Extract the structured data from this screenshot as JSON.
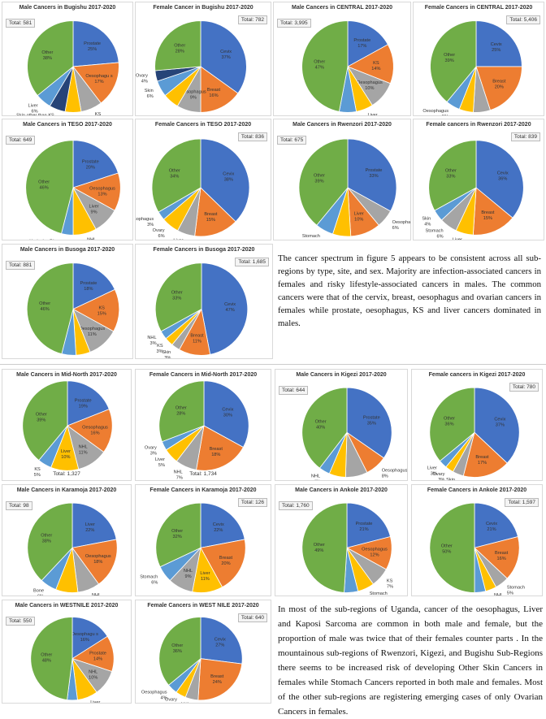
{
  "paragraph1": "The cancer spectrum in figure 5 appears to be consistent across all sub-regions by type, site, and sex. Majority are infection-associated cancers in females and risky lifestyle-associated cancers in males. The common cancers were that of the cervix, breast, oesophagus and ovarian cancers in females while prostate, oesophagus, KS and liver cancers dominated in males.",
  "paragraph2": "In most of the sub-regions of Uganda, cancer of the oesophagus, Liver and Kaposi Sarcoma are common in both male and female, but the proportion of male  was twice that of their females counter parts . In the mountainous sub-regions of Rwenzori, Kigezi, and  Bugishu  Sub-Regions there seems to be increased risk of developing Other Skin Cancers in females while Stomach Cancers reported in both male and females. Most of the other sub-regions are registering emerging cases of only Ovarian Cancers in females.",
  "colors": {
    "Prostate": "#4472c4",
    "Cevix": "#4472c4",
    "Oesophagus": "#ed7d31",
    "Breast": "#ed7d31",
    "KS": "#a5a5a5",
    "Liver": "#ffc000",
    "NHL": "#a5a5a5",
    "Other": "#70ad47",
    "Ovary": "#5b9bd5",
    "Skin": "#5b9bd5",
    "Stomach": "#a5a5a5",
    "Bone": "#5b9bd5",
    "Endemia": "#ffc000",
    "Hodgsins": "#264478",
    "SkinOther": "#5b9bd5"
  },
  "chart_data": [
    {
      "type": "pie",
      "title": "Male Cancers in Bugishu 2017-2020",
      "total": "Total: 581",
      "slices": [
        {
          "label": "Prostate",
          "pct": "25%",
          "value": 25,
          "color": "#4472c4"
        },
        {
          "label": "Oesophagu s",
          "pct": "17%",
          "value": 17,
          "color": "#ed7d31"
        },
        {
          "label": "KS",
          "pct": "8%",
          "value": 8,
          "color": "#a5a5a5"
        },
        {
          "label": "",
          "pct": "",
          "value": 6,
          "color": "#ffc000"
        },
        {
          "label": "Skin other than KS",
          "pct": "6%",
          "value": 6,
          "color": "#264478"
        },
        {
          "label": "Liver",
          "pct": "6%",
          "value": 6,
          "color": "#5b9bd5"
        },
        {
          "label": "Other",
          "pct": "38%",
          "value": 38,
          "color": "#70ad47"
        }
      ]
    },
    {
      "type": "pie",
      "title": "Female Cancer in Bugishu 2017-2020",
      "total": "Total: 782",
      "slices": [
        {
          "label": "Cevix",
          "pct": "37%",
          "value": 37,
          "color": "#4472c4"
        },
        {
          "label": "Breast",
          "pct": "16%",
          "value": 16,
          "color": "#ed7d31"
        },
        {
          "label": "Oesophagus",
          "pct": "9%",
          "value": 9,
          "color": "#a5a5a5"
        },
        {
          "label": "",
          "pct": "",
          "value": 6,
          "color": "#ffc000"
        },
        {
          "label": "Skin",
          "pct": "6%",
          "value": 6,
          "color": "#5b9bd5"
        },
        {
          "label": "Ovary",
          "pct": "4%",
          "value": 4,
          "color": "#264478"
        },
        {
          "label": "Other",
          "pct": "28%",
          "value": 28,
          "color": "#70ad47"
        }
      ]
    },
    {
      "type": "pie",
      "title": "Male Cancers in CENTRAL 2017-2020",
      "total": "Total: 3,995",
      "slices": [
        {
          "label": "Prostate",
          "pct": "17%",
          "value": 17,
          "color": "#4472c4"
        },
        {
          "label": "KS",
          "pct": "14%",
          "value": 14,
          "color": "#ed7d31"
        },
        {
          "label": "Oesophagus",
          "pct": "10%",
          "value": 10,
          "color": "#a5a5a5"
        },
        {
          "label": "Liver",
          "pct": "6%",
          "value": 6,
          "color": "#ffc000"
        },
        {
          "label": "NHL",
          "pct": "6%",
          "value": 6,
          "color": "#5b9bd5"
        },
        {
          "label": "Other",
          "pct": "47%",
          "value": 47,
          "color": "#70ad47"
        }
      ]
    },
    {
      "type": "pie",
      "title": "Female Cancers in CENTRAL 2017-2020",
      "total": "Total: 5,406",
      "slices": [
        {
          "label": "Cevix",
          "pct": "25%",
          "value": 25,
          "color": "#4472c4"
        },
        {
          "label": "Breast",
          "pct": "20%",
          "value": 20,
          "color": "#ed7d31"
        },
        {
          "label": "KS",
          "pct": "6%",
          "value": 6,
          "color": "#a5a5a5"
        },
        {
          "label": "Ovary",
          "pct": "5%",
          "value": 5,
          "color": "#ffc000"
        },
        {
          "label": "Oesophagus",
          "pct": "5%",
          "value": 5,
          "color": "#5b9bd5"
        },
        {
          "label": "Other",
          "pct": "39%",
          "value": 39,
          "color": "#70ad47"
        }
      ]
    },
    {
      "type": "pie",
      "title": "Male Cancers in TESO 2017-2020",
      "total": "Total: 649",
      "slices": [
        {
          "label": "Prostate",
          "pct": "20%",
          "value": 20,
          "color": "#4472c4"
        },
        {
          "label": "Oesophagus",
          "pct": "13%",
          "value": 13,
          "color": "#ed7d31"
        },
        {
          "label": "Liver",
          "pct": "9%",
          "value": 9,
          "color": "#a5a5a5"
        },
        {
          "label": "NHL",
          "pct": "8%",
          "value": 8,
          "color": "#ffc000"
        },
        {
          "label": "Hodgsins Disease",
          "pct": "4%",
          "value": 4,
          "color": "#5b9bd5"
        },
        {
          "label": "Other",
          "pct": "46%",
          "value": 46,
          "color": "#70ad47"
        }
      ]
    },
    {
      "type": "pie",
      "title": "Female Cancers in TESO 2017-2020",
      "total": "Total: 836",
      "slices": [
        {
          "label": "Cevix",
          "pct": "38%",
          "value": 38,
          "color": "#4472c4"
        },
        {
          "label": "Breast",
          "pct": "15%",
          "value": 15,
          "color": "#ed7d31"
        },
        {
          "label": "Liver",
          "pct": "6%",
          "value": 6,
          "color": "#a5a5a5"
        },
        {
          "label": "Ovary",
          "pct": "6%",
          "value": 6,
          "color": "#ffc000"
        },
        {
          "label": "Oesophagus",
          "pct": "3%",
          "value": 3,
          "color": "#5b9bd5"
        },
        {
          "label": "Other",
          "pct": "34%",
          "value": 34,
          "color": "#70ad47"
        }
      ]
    },
    {
      "type": "pie",
      "title": "Male Cancers in Rwenzori 2017-2020",
      "total": "Total: 675",
      "slices": [
        {
          "label": "Prostate",
          "pct": "33%",
          "value": 33,
          "color": "#4472c4"
        },
        {
          "label": "Oesophagus",
          "pct": "6%",
          "value": 6,
          "color": "#a5a5a5"
        },
        {
          "label": "Liver",
          "pct": "10%",
          "value": 10,
          "color": "#ed7d31"
        },
        {
          "label": "KS",
          "pct": "6%",
          "value": 6,
          "color": "#ffc000"
        },
        {
          "label": "Stomach",
          "pct": "6%",
          "value": 6,
          "color": "#5b9bd5"
        },
        {
          "label": "Other",
          "pct": "39%",
          "value": 39,
          "color": "#70ad47"
        }
      ]
    },
    {
      "type": "pie",
      "title": "Female cancers in Rwenzori 2017-2020",
      "total": "Total: 839",
      "slices": [
        {
          "label": "Cevix",
          "pct": "36%",
          "value": 36,
          "color": "#4472c4"
        },
        {
          "label": "Breast",
          "pct": "15%",
          "value": 15,
          "color": "#ed7d31"
        },
        {
          "label": "Liver",
          "pct": "6%",
          "value": 6,
          "color": "#ffc000"
        },
        {
          "label": "Stomach",
          "pct": "6%",
          "value": 6,
          "color": "#a5a5a5"
        },
        {
          "label": "Skin",
          "pct": "4%",
          "value": 4,
          "color": "#5b9bd5"
        },
        {
          "label": "Other",
          "pct": "33%",
          "value": 33,
          "color": "#70ad47"
        }
      ]
    },
    {
      "type": "pie",
      "title": "Male Cancers in Busoga 2017-2020",
      "total": "Total: 881",
      "slices": [
        {
          "label": "Prostate",
          "pct": "18%",
          "value": 18,
          "color": "#4472c4"
        },
        {
          "label": "KS",
          "pct": "15%",
          "value": 15,
          "color": "#ed7d31"
        },
        {
          "label": "Oesophagus",
          "pct": "11%",
          "value": 11,
          "color": "#a5a5a5"
        },
        {
          "label": "NHL",
          "pct": "5%",
          "value": 5,
          "color": "#ffc000"
        },
        {
          "label": "Eye",
          "pct": "5%",
          "value": 5,
          "color": "#5b9bd5"
        },
        {
          "label": "Other",
          "pct": "46%",
          "value": 46,
          "color": "#70ad47"
        }
      ]
    },
    {
      "type": "pie",
      "title": "Female Cancers in Busoga 2017-2020",
      "total": "Total: 1,685",
      "slices": [
        {
          "label": "Cevix",
          "pct": "47%",
          "value": 47,
          "color": "#4472c4"
        },
        {
          "label": "Breast",
          "pct": "11%",
          "value": 11,
          "color": "#ed7d31"
        },
        {
          "label": "Skin",
          "pct": "3%",
          "value": 3,
          "color": "#a5a5a5"
        },
        {
          "label": "KS",
          "pct": "3%",
          "value": 3,
          "color": "#ffc000"
        },
        {
          "label": "NHL",
          "pct": "3%",
          "value": 3,
          "color": "#5b9bd5"
        },
        {
          "label": "Other",
          "pct": "33%",
          "value": 33,
          "color": "#70ad47"
        }
      ]
    },
    {
      "type": "pie",
      "title": "Male Cancers in Mid-North 2017-2020",
      "total": "Total: 1,327",
      "slices": [
        {
          "label": "Prostate",
          "pct": "19%",
          "value": 19,
          "color": "#4472c4"
        },
        {
          "label": "Oesophagus",
          "pct": "16%",
          "value": 16,
          "color": "#ed7d31"
        },
        {
          "label": "NHL",
          "pct": "11%",
          "value": 11,
          "color": "#a5a5a5"
        },
        {
          "label": "Liver",
          "pct": "10%",
          "value": 10,
          "color": "#ffc000"
        },
        {
          "label": "KS",
          "pct": "5%",
          "value": 5,
          "color": "#5b9bd5"
        },
        {
          "label": "Other",
          "pct": "39%",
          "value": 39,
          "color": "#70ad47"
        }
      ]
    },
    {
      "type": "pie",
      "title": "Female Cancers in Mid-North 2017-2020",
      "total": "Total: 1,734",
      "slices": [
        {
          "label": "Cevix",
          "pct": "30%",
          "value": 30,
          "color": "#4472c4"
        },
        {
          "label": "Breast",
          "pct": "18%",
          "value": 18,
          "color": "#ed7d31"
        },
        {
          "label": "NHL",
          "pct": "7%",
          "value": 7,
          "color": "#a5a5a5"
        },
        {
          "label": "Liver",
          "pct": "5%",
          "value": 5,
          "color": "#ffc000"
        },
        {
          "label": "Ovary",
          "pct": "3%",
          "value": 3,
          "color": "#5b9bd5"
        },
        {
          "label": "Other",
          "pct": "28%",
          "value": 28,
          "color": "#70ad47"
        }
      ]
    },
    {
      "type": "pie",
      "title": "Male Cancers in Kigezi 2017-2020",
      "total": "Total: 644",
      "slices": [
        {
          "label": "Prostate",
          "pct": "35%",
          "value": 35,
          "color": "#4472c4"
        },
        {
          "label": "Oesophagus",
          "pct": "8%",
          "value": 8,
          "color": "#ed7d31"
        },
        {
          "label": "Skin",
          "pct": "8%",
          "value": 8,
          "color": "#a5a5a5"
        },
        {
          "label": "Stomach",
          "pct": "6%",
          "value": 6,
          "color": "#ffc000"
        },
        {
          "label": "NHL",
          "pct": "4%",
          "value": 4,
          "color": "#5b9bd5"
        },
        {
          "label": "Other",
          "pct": "40%",
          "value": 40,
          "color": "#70ad47"
        }
      ]
    },
    {
      "type": "pie",
      "title": "Female cancers in Kigezi 2017-2020",
      "total": "Total: 780",
      "slices": [
        {
          "label": "Cevix",
          "pct": "37%",
          "value": 37,
          "color": "#4472c4"
        },
        {
          "label": "Breast",
          "pct": "17%",
          "value": 17,
          "color": "#ed7d31"
        },
        {
          "label": "Skin",
          "pct": "4%",
          "value": 4,
          "color": "#a5a5a5"
        },
        {
          "label": "Ovary",
          "pct": "3%",
          "value": 3,
          "color": "#ffc000"
        },
        {
          "label": "Liver",
          "pct": "3%",
          "value": 3,
          "color": "#5b9bd5"
        },
        {
          "label": "Other",
          "pct": "36%",
          "value": 36,
          "color": "#70ad47"
        }
      ]
    },
    {
      "type": "pie",
      "title": "Male Cancers in Karamoja 2017-2020",
      "total": "Total: 98",
      "slices": [
        {
          "label": "Liver",
          "pct": "22%",
          "value": 22,
          "color": "#4472c4"
        },
        {
          "label": "Oesophagus",
          "pct": "18%",
          "value": 18,
          "color": "#ed7d31"
        },
        {
          "label": "NHL",
          "pct": "8%",
          "value": 8,
          "color": "#a5a5a5"
        },
        {
          "label": "Endemia",
          "pct": "8%",
          "value": 8,
          "color": "#ffc000"
        },
        {
          "label": "Bone",
          "pct": "6%",
          "value": 6,
          "color": "#5b9bd5"
        },
        {
          "label": "Other",
          "pct": "38%",
          "value": 38,
          "color": "#70ad47"
        }
      ]
    },
    {
      "type": "pie",
      "title": "Female Cancers in Karamoja 2017-2020",
      "total": "Total: 126",
      "slices": [
        {
          "label": "Cevix",
          "pct": "22%",
          "value": 22,
          "color": "#4472c4"
        },
        {
          "label": "Breast",
          "pct": "20%",
          "value": 20,
          "color": "#ed7d31"
        },
        {
          "label": "Liver",
          "pct": "11%",
          "value": 11,
          "color": "#ffc000"
        },
        {
          "label": "NHL",
          "pct": "9%",
          "value": 9,
          "color": "#a5a5a5"
        },
        {
          "label": "Stomach",
          "pct": "6%",
          "value": 6,
          "color": "#5b9bd5"
        },
        {
          "label": "Other",
          "pct": "32%",
          "value": 32,
          "color": "#70ad47"
        }
      ]
    },
    {
      "type": "pie",
      "title": "Male Cancers in Ankole 2017-2020",
      "total": "Total: 1,760",
      "slices": [
        {
          "label": "Prostate",
          "pct": "21%",
          "value": 21,
          "color": "#4472c4"
        },
        {
          "label": "Oesophagus",
          "pct": "12%",
          "value": 12,
          "color": "#ed7d31"
        },
        {
          "label": "KS",
          "pct": "7%",
          "value": 7,
          "color": "#a5a5a5"
        },
        {
          "label": "Stomach",
          "pct": "6%",
          "value": 6,
          "color": "#ffc000"
        },
        {
          "label": "NHL",
          "pct": "5%",
          "value": 5,
          "color": "#5b9bd5"
        },
        {
          "label": "Other",
          "pct": "49%",
          "value": 49,
          "color": "#70ad47"
        }
      ]
    },
    {
      "type": "pie",
      "title": "Female Cancers in Ankole 2017-2020",
      "total": "Total: 1,597",
      "slices": [
        {
          "label": "Cevix",
          "pct": "21%",
          "value": 21,
          "color": "#4472c4"
        },
        {
          "label": "Breast",
          "pct": "16%",
          "value": 16,
          "color": "#ed7d31"
        },
        {
          "label": "Stomach",
          "pct": "5%",
          "value": 5,
          "color": "#a5a5a5"
        },
        {
          "label": "NHL",
          "pct": "4%",
          "value": 4,
          "color": "#ffc000"
        },
        {
          "label": "Oesophagus",
          "pct": "4%",
          "value": 4,
          "color": "#5b9bd5"
        },
        {
          "label": "Other",
          "pct": "50%",
          "value": 50,
          "color": "#70ad47"
        }
      ]
    },
    {
      "type": "pie",
      "title": "Male Cancers in WESTNILE 2017-2020",
      "total": "Total: 550",
      "slices": [
        {
          "label": "Oesophagu s",
          "pct": "16%",
          "value": 16,
          "color": "#4472c4"
        },
        {
          "label": "Prostate",
          "pct": "14%",
          "value": 14,
          "color": "#ed7d31"
        },
        {
          "label": "NHL",
          "pct": "10%",
          "value": 10,
          "color": "#a5a5a5"
        },
        {
          "label": "Liver",
          "pct": "8%",
          "value": 8,
          "color": "#ffc000"
        },
        {
          "label": "Hodgsins Disease",
          "pct": "4%",
          "value": 4,
          "color": "#5b9bd5"
        },
        {
          "label": "Other",
          "pct": "48%",
          "value": 48,
          "color": "#70ad47"
        }
      ]
    },
    {
      "type": "pie",
      "title": "Female Cancers in WEST NILE 2017-2020",
      "total": "Total: 640",
      "slices": [
        {
          "label": "Cevix",
          "pct": "27%",
          "value": 27,
          "color": "#4472c4"
        },
        {
          "label": "Breast",
          "pct": "24%",
          "value": 24,
          "color": "#ed7d31"
        },
        {
          "label": "NHL",
          "pct": "5%",
          "value": 5,
          "color": "#a5a5a5"
        },
        {
          "label": "Ovary",
          "pct": "4%",
          "value": 4,
          "color": "#ffc000"
        },
        {
          "label": "Oesophagus",
          "pct": "4%",
          "value": 4,
          "color": "#5b9bd5"
        },
        {
          "label": "Other",
          "pct": "36%",
          "value": 36,
          "color": "#70ad47"
        }
      ]
    }
  ]
}
